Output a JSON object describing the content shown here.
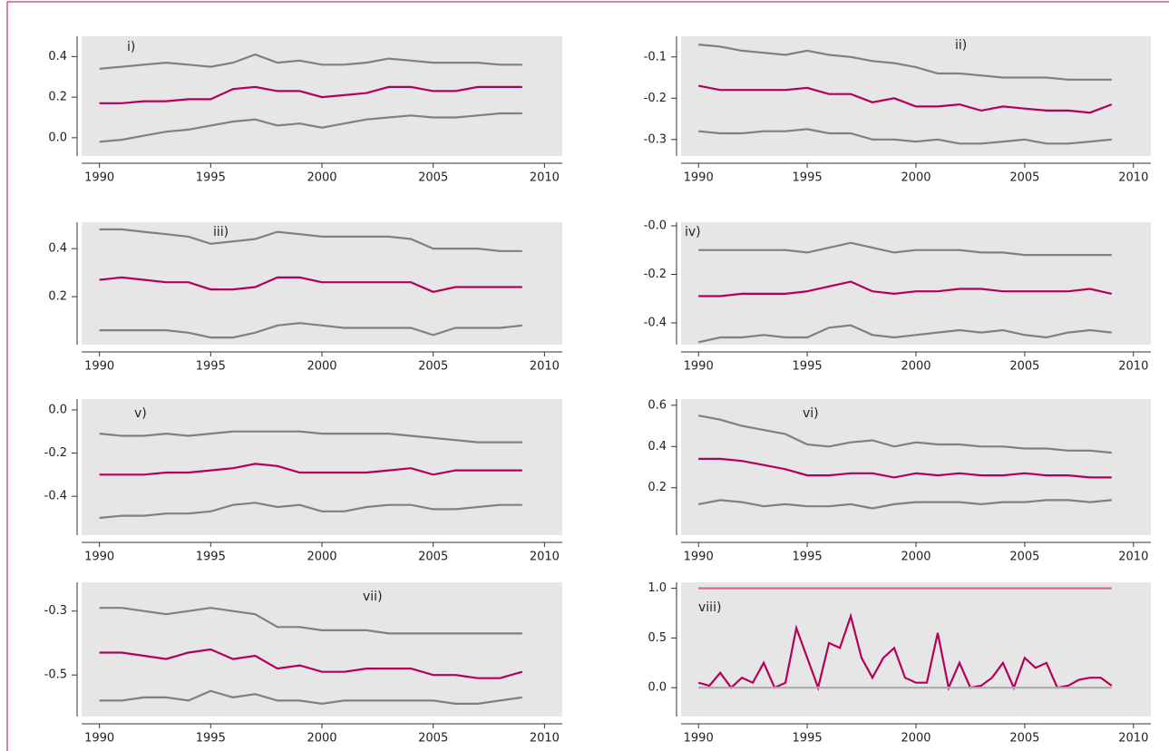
{
  "chart_data": [
    {
      "type": "line",
      "title": "i)",
      "x": [
        1990,
        1991,
        1992,
        1993,
        1994,
        1995,
        1996,
        1997,
        1998,
        1999,
        2000,
        2001,
        2002,
        2003,
        2004,
        2005,
        2006,
        2007,
        2008,
        2009
      ],
      "xlim": [
        1989.2,
        2010.8
      ],
      "xticks": [
        1990,
        1995,
        2000,
        2005,
        2010
      ],
      "ylim": [
        -0.09,
        0.5
      ],
      "yticks": [
        {
          "value": 0,
          "label": "0.0"
        },
        0.2,
        0.4
      ],
      "series": [
        {
          "color": "#808080",
          "values": [
            0.34,
            0.35,
            0.36,
            0.37,
            0.36,
            0.35,
            0.37,
            0.41,
            0.37,
            0.38,
            0.36,
            0.36,
            0.37,
            0.39,
            0.38,
            0.37,
            0.37,
            0.37,
            0.36,
            0.36
          ]
        },
        {
          "color": "#b5005b",
          "values": [
            0.17,
            0.17,
            0.18,
            0.18,
            0.19,
            0.19,
            0.24,
            0.25,
            0.23,
            0.23,
            0.2,
            0.21,
            0.22,
            0.25,
            0.25,
            0.23,
            0.23,
            0.25,
            0.25,
            0.25
          ]
        },
        {
          "color": "#808080",
          "values": [
            -0.02,
            -0.01,
            0.01,
            0.03,
            0.04,
            0.06,
            0.08,
            0.09,
            0.06,
            0.07,
            0.05,
            0.07,
            0.09,
            0.1,
            0.11,
            0.1,
            0.1,
            0.11,
            0.12,
            0.12
          ]
        }
      ]
    },
    {
      "type": "line",
      "title": "ii)",
      "x": [
        1990,
        1991,
        1992,
        1993,
        1994,
        1995,
        1996,
        1997,
        1998,
        1999,
        2000,
        2001,
        2002,
        2003,
        2004,
        2005,
        2006,
        2007,
        2008,
        2009
      ],
      "xlim": [
        1989.2,
        2010.8
      ],
      "xticks": [
        1990,
        1995,
        2000,
        2005,
        2010
      ],
      "ylim": [
        -0.34,
        -0.05
      ],
      "yticks": [
        -0.3,
        -0.2,
        -0.1
      ],
      "series": [
        {
          "color": "#808080",
          "values": [
            -0.07,
            -0.075,
            -0.085,
            -0.09,
            -0.095,
            -0.085,
            -0.095,
            -0.1,
            -0.11,
            -0.115,
            -0.125,
            -0.14,
            -0.14,
            -0.145,
            -0.15,
            -0.15,
            -0.15,
            -0.155,
            -0.155,
            -0.155
          ]
        },
        {
          "color": "#b5005b",
          "values": [
            -0.17,
            -0.18,
            -0.18,
            -0.18,
            -0.18,
            -0.175,
            -0.19,
            -0.19,
            -0.21,
            -0.2,
            -0.22,
            -0.22,
            -0.215,
            -0.23,
            -0.22,
            -0.225,
            -0.23,
            -0.23,
            -0.235,
            -0.215
          ]
        },
        {
          "color": "#808080",
          "values": [
            -0.28,
            -0.285,
            -0.285,
            -0.28,
            -0.28,
            -0.275,
            -0.285,
            -0.285,
            -0.3,
            -0.3,
            -0.305,
            -0.3,
            -0.31,
            -0.31,
            -0.305,
            -0.3,
            -0.31,
            -0.31,
            -0.305,
            -0.3
          ]
        }
      ]
    },
    {
      "type": "line",
      "title": "iii)",
      "x": [
        1990,
        1991,
        1992,
        1993,
        1994,
        1995,
        1996,
        1997,
        1998,
        1999,
        2000,
        2001,
        2002,
        2003,
        2004,
        2005,
        2006,
        2007,
        2008,
        2009
      ],
      "xlim": [
        1989.2,
        2010.8
      ],
      "xticks": [
        1990,
        1995,
        2000,
        2005,
        2010
      ],
      "ylim": [
        0.0,
        0.51
      ],
      "yticks": [
        0.2,
        0.4
      ],
      "series": [
        {
          "color": "#808080",
          "values": [
            0.48,
            0.48,
            0.47,
            0.46,
            0.45,
            0.42,
            0.43,
            0.44,
            0.47,
            0.46,
            0.45,
            0.45,
            0.45,
            0.45,
            0.44,
            0.4,
            0.4,
            0.4,
            0.39,
            0.39
          ]
        },
        {
          "color": "#b5005b",
          "values": [
            0.27,
            0.28,
            0.27,
            0.26,
            0.26,
            0.23,
            0.23,
            0.24,
            0.28,
            0.28,
            0.26,
            0.26,
            0.26,
            0.26,
            0.26,
            0.22,
            0.24,
            0.24,
            0.24,
            0.24
          ]
        },
        {
          "color": "#808080",
          "values": [
            0.06,
            0.06,
            0.06,
            0.06,
            0.05,
            0.03,
            0.03,
            0.05,
            0.08,
            0.09,
            0.08,
            0.07,
            0.07,
            0.07,
            0.07,
            0.04,
            0.07,
            0.07,
            0.07,
            0.08
          ]
        }
      ]
    },
    {
      "type": "line",
      "title": "iv)",
      "x": [
        1990,
        1991,
        1992,
        1993,
        1994,
        1995,
        1996,
        1997,
        1998,
        1999,
        2000,
        2001,
        2002,
        2003,
        2004,
        2005,
        2006,
        2007,
        2008,
        2009
      ],
      "xlim": [
        1989.2,
        2010.8
      ],
      "xticks": [
        1990,
        1995,
        2000,
        2005,
        2010
      ],
      "ylim": [
        -0.49,
        0.015
      ],
      "yticks": [
        -0.4,
        -0.2,
        {
          "value": 0,
          "label": "-0.0"
        }
      ],
      "series": [
        {
          "color": "#808080",
          "values": [
            -0.1,
            -0.1,
            -0.1,
            -0.1,
            -0.1,
            -0.11,
            -0.09,
            -0.07,
            -0.09,
            -0.11,
            -0.1,
            -0.1,
            -0.1,
            -0.11,
            -0.11,
            -0.12,
            -0.12,
            -0.12,
            -0.12,
            -0.12
          ]
        },
        {
          "color": "#b5005b",
          "values": [
            -0.29,
            -0.29,
            -0.28,
            -0.28,
            -0.28,
            -0.27,
            -0.25,
            -0.23,
            -0.27,
            -0.28,
            -0.27,
            -0.27,
            -0.26,
            -0.26,
            -0.27,
            -0.27,
            -0.27,
            -0.27,
            -0.26,
            -0.28
          ]
        },
        {
          "color": "#808080",
          "values": [
            -0.48,
            -0.46,
            -0.46,
            -0.45,
            -0.46,
            -0.46,
            -0.42,
            -0.41,
            -0.45,
            -0.46,
            -0.45,
            -0.44,
            -0.43,
            -0.44,
            -0.43,
            -0.45,
            -0.46,
            -0.44,
            -0.43,
            -0.44
          ]
        }
      ]
    },
    {
      "type": "line",
      "title": "v)",
      "x": [
        1990,
        1991,
        1992,
        1993,
        1994,
        1995,
        1996,
        1997,
        1998,
        1999,
        2000,
        2001,
        2002,
        2003,
        2004,
        2005,
        2006,
        2007,
        2008,
        2009
      ],
      "xlim": [
        1989.2,
        2010.8
      ],
      "xticks": [
        1990,
        1995,
        2000,
        2005,
        2010
      ],
      "ylim": [
        -0.58,
        0.05
      ],
      "yticks": [
        -0.4,
        -0.2,
        {
          "value": 0,
          "label": "0.0"
        }
      ],
      "series": [
        {
          "color": "#808080",
          "values": [
            -0.11,
            -0.12,
            -0.12,
            -0.11,
            -0.12,
            -0.11,
            -0.1,
            -0.1,
            -0.1,
            -0.1,
            -0.11,
            -0.11,
            -0.11,
            -0.11,
            -0.12,
            -0.13,
            -0.14,
            -0.15,
            -0.15,
            -0.15
          ]
        },
        {
          "color": "#b5005b",
          "values": [
            -0.3,
            -0.3,
            -0.3,
            -0.29,
            -0.29,
            -0.28,
            -0.27,
            -0.25,
            -0.26,
            -0.29,
            -0.29,
            -0.29,
            -0.29,
            -0.28,
            -0.27,
            -0.3,
            -0.28,
            -0.28,
            -0.28,
            -0.28
          ]
        },
        {
          "color": "#808080",
          "values": [
            -0.5,
            -0.49,
            -0.49,
            -0.48,
            -0.48,
            -0.47,
            -0.44,
            -0.43,
            -0.45,
            -0.44,
            -0.47,
            -0.47,
            -0.45,
            -0.44,
            -0.44,
            -0.46,
            -0.46,
            -0.45,
            -0.44,
            -0.44
          ]
        }
      ]
    },
    {
      "type": "line",
      "title": "vi)",
      "x": [
        1990,
        1991,
        1992,
        1993,
        1994,
        1995,
        1996,
        1997,
        1998,
        1999,
        2000,
        2001,
        2002,
        2003,
        2004,
        2005,
        2006,
        2007,
        2008,
        2009
      ],
      "xlim": [
        1989.2,
        2010.8
      ],
      "xticks": [
        1990,
        1995,
        2000,
        2005,
        2010
      ],
      "ylim": [
        -0.03,
        0.63
      ],
      "yticks": [
        0.2,
        0.4,
        0.6
      ],
      "series": [
        {
          "color": "#808080",
          "values": [
            0.55,
            0.53,
            0.5,
            0.48,
            0.46,
            0.41,
            0.4,
            0.42,
            0.43,
            0.4,
            0.42,
            0.41,
            0.41,
            0.4,
            0.4,
            0.39,
            0.39,
            0.38,
            0.38,
            0.37
          ]
        },
        {
          "color": "#b5005b",
          "values": [
            0.34,
            0.34,
            0.33,
            0.31,
            0.29,
            0.26,
            0.26,
            0.27,
            0.27,
            0.25,
            0.27,
            0.26,
            0.27,
            0.26,
            0.26,
            0.27,
            0.26,
            0.26,
            0.25,
            0.25
          ]
        },
        {
          "color": "#808080",
          "values": [
            0.12,
            0.14,
            0.13,
            0.11,
            0.12,
            0.11,
            0.11,
            0.12,
            0.1,
            0.12,
            0.13,
            0.13,
            0.13,
            0.12,
            0.13,
            0.13,
            0.14,
            0.14,
            0.13,
            0.14
          ]
        }
      ]
    },
    {
      "type": "line",
      "title": "vii)",
      "x": [
        1990,
        1991,
        1992,
        1993,
        1994,
        1995,
        1996,
        1997,
        1998,
        1999,
        2000,
        2001,
        2002,
        2003,
        2004,
        2005,
        2006,
        2007,
        2008,
        2009
      ],
      "xlim": [
        1989.2,
        2010.8
      ],
      "xticks": [
        1990,
        1995,
        2000,
        2005,
        2010
      ],
      "ylim": [
        -0.63,
        -0.21
      ],
      "yticks": [
        -0.5,
        -0.3
      ],
      "series": [
        {
          "color": "#808080",
          "values": [
            -0.29,
            -0.29,
            -0.3,
            -0.31,
            -0.3,
            -0.29,
            -0.3,
            -0.31,
            -0.35,
            -0.35,
            -0.36,
            -0.36,
            -0.36,
            -0.37,
            -0.37,
            -0.37,
            -0.37,
            -0.37,
            -0.37,
            -0.37
          ]
        },
        {
          "color": "#b5005b",
          "values": [
            -0.43,
            -0.43,
            -0.44,
            -0.45,
            -0.43,
            -0.42,
            -0.45,
            -0.44,
            -0.48,
            -0.47,
            -0.49,
            -0.49,
            -0.48,
            -0.48,
            -0.48,
            -0.5,
            -0.5,
            -0.51,
            -0.51,
            -0.49
          ]
        },
        {
          "color": "#808080",
          "values": [
            -0.58,
            -0.58,
            -0.57,
            -0.57,
            -0.58,
            -0.55,
            -0.57,
            -0.56,
            -0.58,
            -0.58,
            -0.59,
            -0.58,
            -0.58,
            -0.58,
            -0.58,
            -0.58,
            -0.59,
            -0.59,
            -0.58,
            -0.57
          ]
        }
      ]
    },
    {
      "type": "line",
      "title": "viii)",
      "x": [
        1990,
        1990.5,
        1991,
        1991.5,
        1992,
        1992.5,
        1993,
        1993.5,
        1994,
        1994.5,
        1995,
        1995.5,
        1996,
        1996.5,
        1997,
        1997.5,
        1998,
        1998.5,
        1999,
        1999.5,
        2000,
        2000.5,
        2001,
        2001.5,
        2002,
        2002.5,
        2003,
        2003.5,
        2004,
        2004.5,
        2005,
        2005.5,
        2006,
        2006.5,
        2007,
        2007.5,
        2008,
        2008.5,
        2009
      ],
      "xlim": [
        1989.2,
        2010.8
      ],
      "xticks": [
        1990,
        1995,
        2000,
        2005,
        2010
      ],
      "ylim": [
        -0.29,
        1.06
      ],
      "yticks": [
        {
          "value": 0,
          "label": "0.0"
        },
        0.5,
        {
          "value": 1,
          "label": "1.0"
        }
      ],
      "series": [
        {
          "color": "#d8698f",
          "values": [
            1,
            1,
            1,
            1,
            1,
            1,
            1,
            1,
            1,
            1,
            1,
            1,
            1,
            1,
            1,
            1,
            1,
            1,
            1,
            1,
            1,
            1,
            1,
            1,
            1,
            1,
            1,
            1,
            1,
            1,
            1,
            1,
            1,
            1,
            1,
            1,
            1,
            1,
            1
          ]
        },
        {
          "color": "#b5005b",
          "values": [
            0.05,
            0.02,
            0.15,
            0,
            0.1,
            0.05,
            0.25,
            0,
            0.05,
            0.6,
            0.3,
            0,
            0.45,
            0.4,
            0.72,
            0.3,
            0.1,
            0.3,
            0.4,
            0.1,
            0.05,
            0.05,
            0.55,
            0,
            0.25,
            0,
            0.02,
            0.1,
            0.25,
            0,
            0.3,
            0.2,
            0.25,
            0,
            0.02,
            0.08,
            0.1,
            0.1,
            0.02
          ]
        },
        {
          "color": "#aaaaaa",
          "values": [
            0,
            0,
            0,
            0,
            0,
            0,
            0,
            0,
            0,
            0,
            0,
            0,
            0,
            0,
            0,
            0,
            0,
            0,
            0,
            0,
            0,
            0,
            0,
            0,
            0,
            0,
            0,
            0,
            0,
            0,
            0,
            0,
            0,
            0,
            0,
            0,
            0,
            0,
            0
          ]
        }
      ]
    }
  ]
}
